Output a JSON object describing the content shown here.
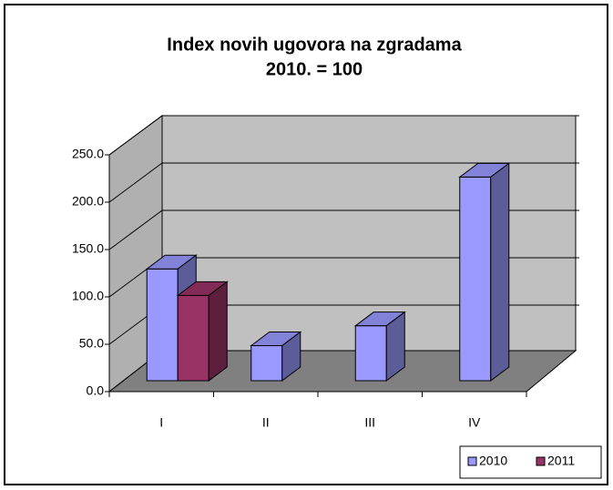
{
  "chart_data": {
    "type": "bar3d",
    "title": "Index novih ugovora na zgradama",
    "subtitle": "2010. = 100",
    "categories": [
      "I",
      "II",
      "III",
      "IV"
    ],
    "series": [
      {
        "name": "2010",
        "color": "#9999ff",
        "values": [
          118,
          37,
          58,
          215
        ]
      },
      {
        "name": "2011",
        "color": "#993366",
        "values": [
          90,
          null,
          null,
          null
        ]
      }
    ],
    "ylim": [
      0,
      250
    ],
    "yticks": [
      {
        "value": 0,
        "label": "0.0"
      },
      {
        "value": 50,
        "label": "50.0"
      },
      {
        "value": 100,
        "label": "100.0"
      },
      {
        "value": 150,
        "label": "150.0"
      },
      {
        "value": 200,
        "label": "200.0"
      },
      {
        "value": 250,
        "label": "250.0"
      }
    ],
    "grid": true,
    "legend": "bottom-right"
  }
}
